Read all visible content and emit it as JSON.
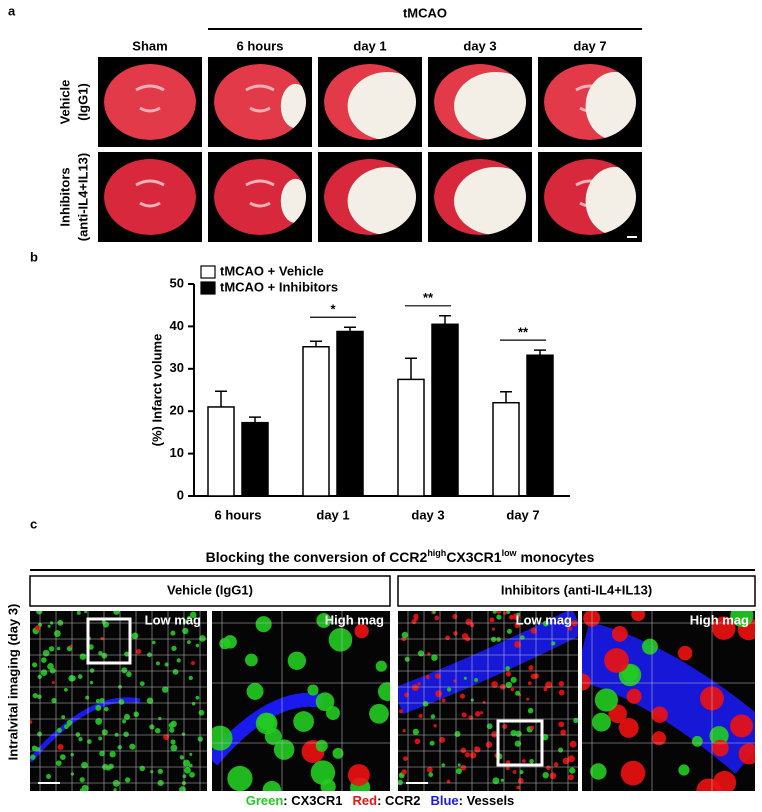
{
  "panel_a": {
    "label": "a",
    "group_label": "tMCAO",
    "columns": [
      "Sham",
      "6 hours",
      "day 1",
      "day 3",
      "day 7"
    ],
    "rows": [
      {
        "name": "Vehicle",
        "sub": "(IgG1)"
      },
      {
        "name": "Inhibitors",
        "sub": "(anti-IL4+IL13)"
      }
    ]
  },
  "chart_data": {
    "type": "bar",
    "panel_label": "b",
    "ylabel": "(%) Infarct volume",
    "categories": [
      "6 hours",
      "day 1",
      "day 3",
      "day 7"
    ],
    "series": [
      {
        "name": "tMCAO + Vehicle",
        "color": "#ffffff",
        "values": [
          21,
          35.2,
          27.5,
          22
        ],
        "errors": [
          3.7,
          1.3,
          5,
          2.6
        ]
      },
      {
        "name": "tMCAO + Inhibitors",
        "color": "#000000",
        "values": [
          17.3,
          38.8,
          40.5,
          33.2
        ],
        "errors": [
          1.3,
          1,
          2,
          1.2
        ]
      }
    ],
    "significance": [
      null,
      "*",
      "**",
      "**"
    ],
    "ylim": [
      0,
      50
    ],
    "yticks": [
      0,
      10,
      20,
      30,
      40,
      50
    ]
  },
  "panel_c": {
    "label": "c",
    "title_parts": [
      "Blocking the conversion of CCR2",
      "high",
      "CX3CR1",
      "low",
      " monocytes"
    ],
    "side_label": "Intralvital imaging (day 3)",
    "groups": [
      "Vehicle (IgG1)",
      "Inhibitors (anti-IL4+IL13)"
    ],
    "image_labels": [
      "Low mag",
      "High mag",
      "Low mag",
      "High mag"
    ],
    "legend": [
      {
        "label": "Green",
        "color": "#22cc22",
        "text": ": CX3CR1"
      },
      {
        "label": "Red",
        "color": "#ee1111",
        "text": ": CCR2"
      },
      {
        "label": "Blue",
        "color": "#1a1aee",
        "text": ": Vessels"
      }
    ]
  }
}
